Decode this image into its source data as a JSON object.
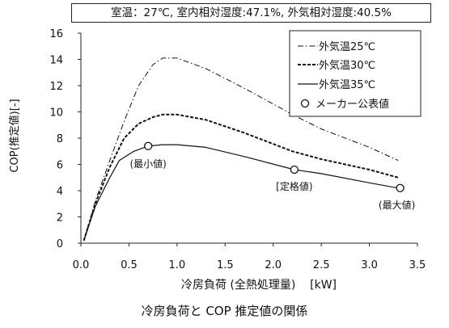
{
  "chart_data": {
    "type": "line",
    "condition": "室温：27℃, 室内相対湿度:47.1%, 外気相対湿度:40.5%",
    "xlabel": "冷房負荷 (全熱処理量)    [kW]",
    "ylabel": "COP(推定値)[-]",
    "caption": "冷房負荷と COP 推定値の関係",
    "xlim": [
      0.0,
      3.5
    ],
    "ylim": [
      0,
      16
    ],
    "xticks": [
      "0.0",
      "0.5",
      "1.0",
      "1.5",
      "2.0",
      "2.5",
      "3.0",
      "3.5"
    ],
    "yticks": [
      "0",
      "2",
      "4",
      "6",
      "8",
      "10",
      "12",
      "14",
      "16"
    ],
    "grid": false,
    "legend_position": "top-right",
    "series": [
      {
        "name": "外気温25℃",
        "style": "dashdot",
        "points": [
          [
            0.03,
            0.2
          ],
          [
            0.15,
            3.2
          ],
          [
            0.3,
            6.3
          ],
          [
            0.45,
            9.3
          ],
          [
            0.6,
            12.0
          ],
          [
            0.75,
            13.6
          ],
          [
            0.85,
            14.1
          ],
          [
            1.0,
            14.1
          ],
          [
            1.3,
            13.3
          ],
          [
            1.7,
            11.8
          ],
          [
            2.2,
            9.8
          ],
          [
            2.5,
            8.7
          ],
          [
            3.0,
            7.3
          ],
          [
            3.3,
            6.3
          ]
        ]
      },
      {
        "name": "外気温30℃",
        "style": "dashed",
        "points": [
          [
            0.03,
            0.2
          ],
          [
            0.15,
            3.0
          ],
          [
            0.3,
            5.8
          ],
          [
            0.45,
            8.0
          ],
          [
            0.6,
            9.1
          ],
          [
            0.75,
            9.6
          ],
          [
            0.85,
            9.8
          ],
          [
            1.0,
            9.8
          ],
          [
            1.3,
            9.4
          ],
          [
            1.7,
            8.4
          ],
          [
            2.2,
            7.0
          ],
          [
            2.5,
            6.4
          ],
          [
            3.0,
            5.6
          ],
          [
            3.3,
            5.0
          ]
        ]
      },
      {
        "name": "外気温35℃",
        "style": "solid",
        "points": [
          [
            0.03,
            0.2
          ],
          [
            0.15,
            2.8
          ],
          [
            0.3,
            5.0
          ],
          [
            0.4,
            6.3
          ],
          [
            0.55,
            7.0
          ],
          [
            0.7,
            7.4
          ],
          [
            0.85,
            7.5
          ],
          [
            1.0,
            7.5
          ],
          [
            1.3,
            7.3
          ],
          [
            1.7,
            6.6
          ],
          [
            2.22,
            5.6
          ],
          [
            2.5,
            5.3
          ],
          [
            3.0,
            4.6
          ],
          [
            3.3,
            4.2
          ]
        ]
      }
    ],
    "markers": {
      "name": "メーカー公表値",
      "points": [
        {
          "x": 0.7,
          "y": 7.4,
          "label": "(最小値)"
        },
        {
          "x": 2.22,
          "y": 5.6,
          "label": "[定格値)"
        },
        {
          "x": 3.32,
          "y": 4.2,
          "label": "(最大値)"
        }
      ]
    }
  }
}
